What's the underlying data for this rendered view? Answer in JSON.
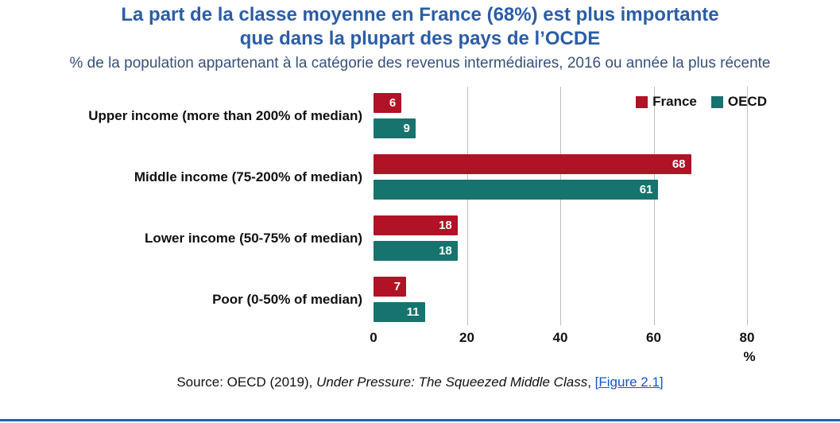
{
  "header": {
    "title_line1": "La part de la classe moyenne en France (68%) est plus importante",
    "title_line2": "que dans la plupart des pays de l’OCDE",
    "subtitle": "% de la population appartenant à la catégorie des revenus intermédiaires, 2016 ou année la plus récente"
  },
  "chart_data": {
    "type": "bar",
    "orientation": "horizontal",
    "categories": [
      "Upper income (more than 200% of median)",
      "Middle income (75-200% of median)",
      "Lower income (50-75% of median)",
      "Poor (0-50% of median)"
    ],
    "series": [
      {
        "name": "France",
        "color": "#B11226",
        "values": [
          6,
          68,
          18,
          7
        ]
      },
      {
        "name": "OECD",
        "color": "#17736E",
        "values": [
          9,
          61,
          18,
          11
        ]
      }
    ],
    "xlabel": "%",
    "xlim": [
      0,
      80
    ],
    "xticks": [
      0,
      20,
      40,
      60,
      80
    ],
    "grid": true,
    "legend_position": "top-right",
    "value_labels": true
  },
  "footer": {
    "source_prefix": "Source: OECD (2019), ",
    "source_italic": "Under Pressure: The Squeezed Middle Class",
    "source_sep": ", ",
    "source_link": "[Figure 2.1]"
  },
  "colors": {
    "title_blue": "#2B5DA7",
    "france_red": "#B11226",
    "oecd_teal": "#17736E",
    "link_blue": "#1155CC",
    "rule_blue": "#2B5DA7",
    "gridline": "#bfbfbf"
  }
}
